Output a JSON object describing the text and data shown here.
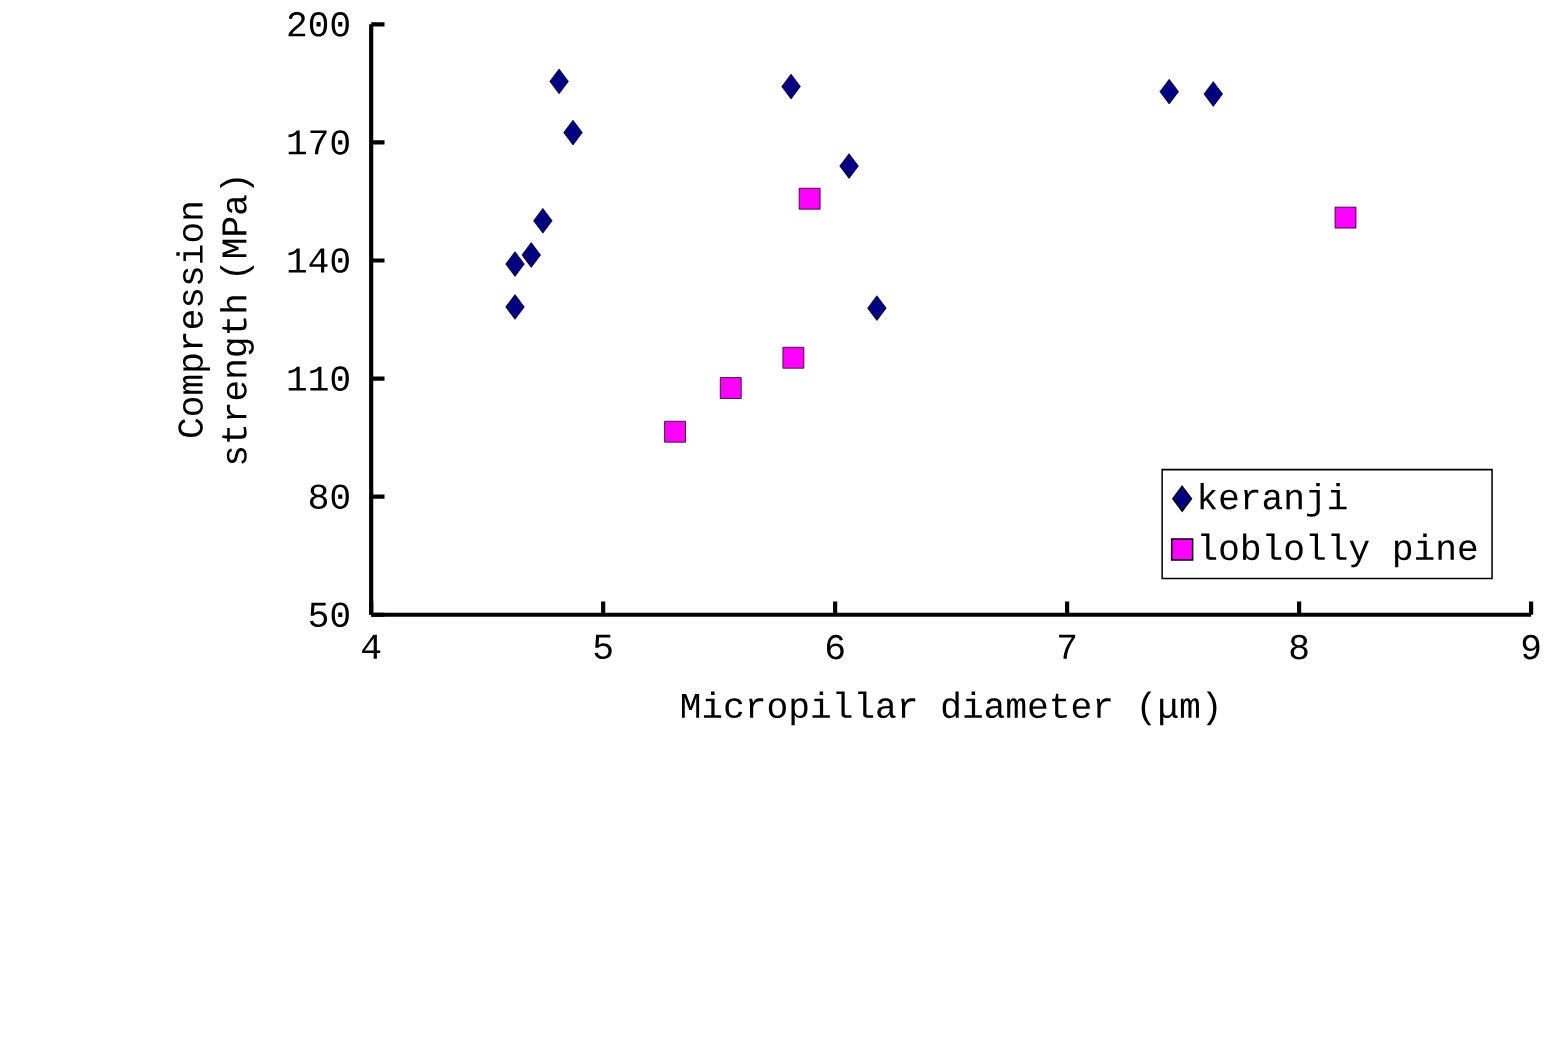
{
  "chart_data": {
    "type": "scatter",
    "xlabel": "Micropillar diameter (μm)",
    "ylabel": "Compression strength (MPa)",
    "xlim": [
      4,
      9
    ],
    "xticks": [
      4,
      5,
      6,
      7,
      8,
      9
    ],
    "ylim": [
      50,
      200
    ],
    "yticks": [
      50,
      80,
      110,
      140,
      170,
      200
    ],
    "grid": false,
    "legend": "bottom right",
    "series": [
      {
        "name": "keranji",
        "color": "#000080",
        "marker": "diamond",
        "x": [
          4.81,
          4.87,
          4.74,
          4.69,
          4.62,
          4.62,
          5.81,
          6.06,
          6.18,
          7.44,
          7.63
        ],
        "values": [
          185.5,
          172.5,
          150.1,
          141.4,
          139.1,
          128.2,
          184.2,
          164.0,
          127.9,
          182.9,
          182.3
        ]
      },
      {
        "name": "loblolly pine",
        "color": "#ff00ff",
        "marker": "square",
        "x": [
          5.31,
          5.55,
          5.82,
          5.89,
          8.2
        ],
        "values": [
          96.5,
          107.6,
          115.3,
          155.7,
          150.9
        ]
      }
    ]
  }
}
